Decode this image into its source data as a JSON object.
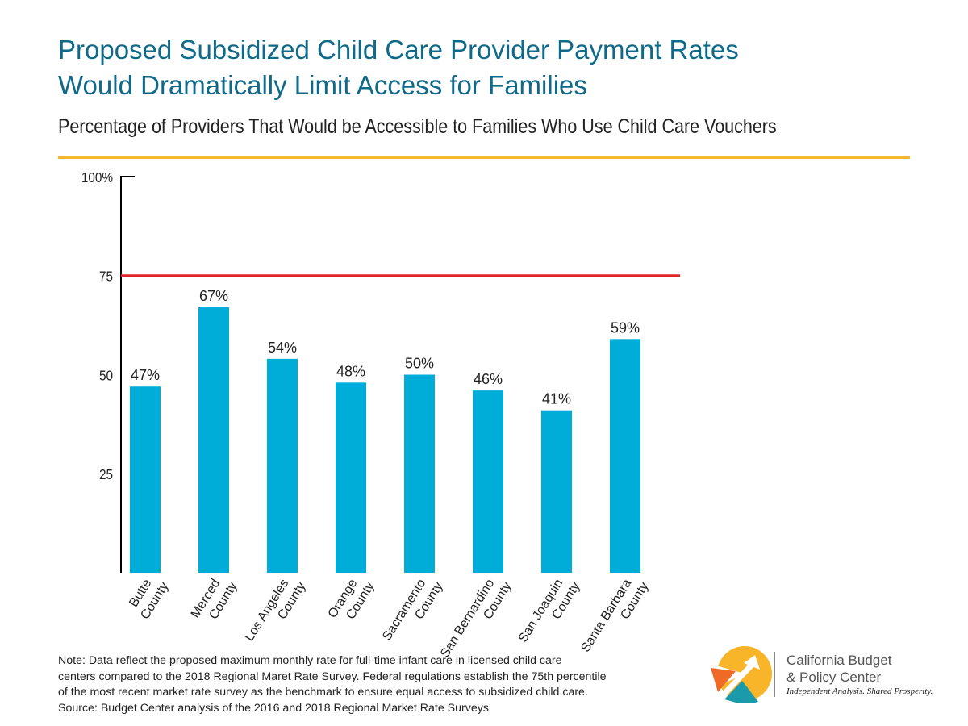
{
  "title_line1": "Proposed Subsidized Child Care Provider Payment Rates",
  "title_line2": "Would Dramatically Limit Access for Families",
  "subtitle": "Percentage of Providers That Would be Accessible to Families Who Use Child Care Vouchers",
  "note_lines": [
    "Note: Data reflect the proposed maximum monthly rate for full-time infant care in licensed child care",
    "centers compared to the 2018 Regional Maret Rate Survey. Federal regulations establish the 75th percentile",
    "of the most recent market rate survey as the benchmark to ensure equal access to subsidized child care.",
    "Source: Budget Center analysis of the 2016 and 2018 Regional Market Rate Surveys"
  ],
  "logo": {
    "name_line1": "California Budget",
    "name_line2": "& Policy Center",
    "tagline": "Independent Analysis. Shared Prosperity."
  },
  "colors": {
    "bar": "#00acd8",
    "benchmark": "#e0242b",
    "title": "#0f6a8a",
    "rule": "#f5b82e"
  },
  "chart_data": {
    "type": "bar",
    "categories": [
      [
        "Butte",
        "County"
      ],
      [
        "Merced",
        "County"
      ],
      [
        "Los Angeles",
        "County"
      ],
      [
        "Orange",
        "County"
      ],
      [
        "Sacramento",
        "County"
      ],
      [
        "San Bernardino",
        "County"
      ],
      [
        "San Joaquin",
        "County"
      ],
      [
        "Santa Barbara",
        "County"
      ]
    ],
    "values": [
      47,
      67,
      54,
      48,
      50,
      46,
      41,
      59
    ],
    "data_labels": [
      "47%",
      "67%",
      "54%",
      "48%",
      "50%",
      "46%",
      "41%",
      "59%"
    ],
    "ylim": [
      0,
      100
    ],
    "yticks": [
      25,
      50,
      75,
      100
    ],
    "ytick_labels": [
      "25",
      "50",
      "75",
      "100%"
    ],
    "reference_line": {
      "value": 75
    },
    "grid": false,
    "legend": "none"
  }
}
